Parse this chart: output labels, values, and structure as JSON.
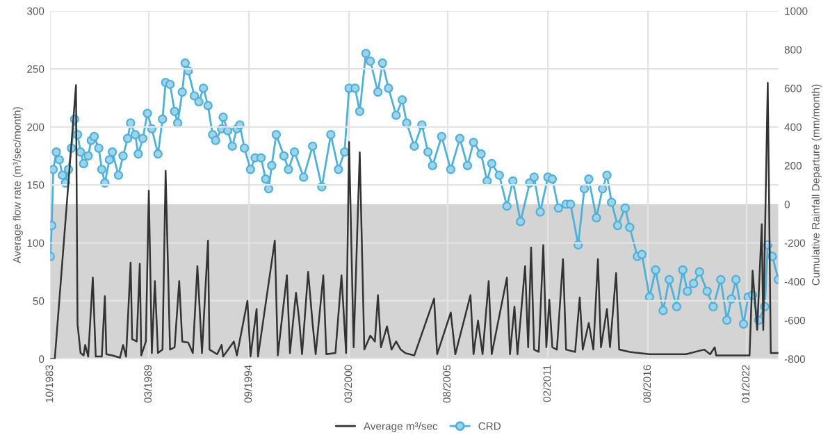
{
  "chart_data": {
    "type": "line",
    "ylabel": "Average flow rate (m³/sec/month)",
    "y2label": "Cumulative Rainfall Departure (mm/month)",
    "xlim": [
      "1983-10",
      "2023-10"
    ],
    "xticks": [
      {
        "value": "1983-10",
        "label": "10/1983"
      },
      {
        "value": "1989-03",
        "label": "03/1989"
      },
      {
        "value": "1994-09",
        "label": "09/1994"
      },
      {
        "value": "2000-03",
        "label": "03/2000"
      },
      {
        "value": "2005-08",
        "label": "08/2005"
      },
      {
        "value": "2011-02",
        "label": "02/2011"
      },
      {
        "value": "2016-08",
        "label": "08/2016"
      },
      {
        "value": "2022-01",
        "label": "01/2022"
      }
    ],
    "ylim": [
      0,
      300
    ],
    "yticks": [
      0,
      50,
      100,
      150,
      200,
      250,
      300
    ],
    "y2lim": [
      -800,
      1000
    ],
    "y2ticks": [
      -800,
      -600,
      -400,
      -200,
      0,
      200,
      400,
      600,
      800,
      1000
    ],
    "grid": true,
    "legend": "bottom",
    "bands": [
      {
        "axis": "y2",
        "from": -800,
        "to": 0,
        "color": "#d4d4d4"
      }
    ],
    "series": [
      {
        "name": "Average m³/sec",
        "color": "#333333",
        "marker": "none",
        "axis": "y",
        "x": [
          "1983-10",
          "1984-01",
          "1985-03",
          "1985-04",
          "1985-06",
          "1985-08",
          "1985-09",
          "1985-11",
          "1986-02",
          "1986-04",
          "1986-08",
          "1986-10",
          "1986-11",
          "1987-03",
          "1987-08",
          "1987-10",
          "1987-12",
          "1988-03",
          "1988-04",
          "1988-07",
          "1988-09",
          "1988-10",
          "1989-01",
          "1989-03",
          "1989-05",
          "1989-07",
          "1989-09",
          "1989-12",
          "1990-02",
          "1990-05",
          "1990-08",
          "1990-11",
          "1991-01",
          "1991-05",
          "1991-08",
          "1991-11",
          "1992-02",
          "1992-06",
          "1992-07",
          "1992-12",
          "1993-03",
          "1993-04",
          "1993-11",
          "1994-01",
          "1994-08",
          "1994-10",
          "1995-02",
          "1995-03",
          "1996-02",
          "1996-04",
          "1996-10",
          "1996-12",
          "1997-04",
          "1997-06",
          "1997-08",
          "1997-12",
          "1998-03",
          "1998-05",
          "1998-10",
          "1998-12",
          "1999-06",
          "1999-10",
          "2000-01",
          "2000-03",
          "2000-06",
          "2000-10",
          "2001-01",
          "2001-05",
          "2001-08",
          "2001-10",
          "2001-12",
          "2002-04",
          "2002-07",
          "2002-10",
          "2003-01",
          "2003-04",
          "2003-10",
          "2004-11",
          "2005-01",
          "2005-10",
          "2006-01",
          "2006-11",
          "2007-01",
          "2007-04",
          "2007-07",
          "2007-11",
          "2008-01",
          "2008-11",
          "2009-01",
          "2009-04",
          "2009-06",
          "2009-11",
          "2010-01",
          "2010-03",
          "2010-05",
          "2010-08",
          "2010-11",
          "2011-01",
          "2011-03",
          "2011-05",
          "2011-08",
          "2011-12",
          "2012-02",
          "2012-08",
          "2012-11",
          "2013-01",
          "2013-05",
          "2013-08",
          "2013-11",
          "2014-01",
          "2014-05",
          "2014-07",
          "2014-11",
          "2015-01",
          "2015-08",
          "2016-09",
          "2018-09",
          "2019-09",
          "2020-01",
          "2020-04",
          "2020-05",
          "2022-03",
          "2022-05",
          "2022-08",
          "2022-11",
          "2022-12",
          "2023-03",
          "2023-05",
          "2023-10"
        ],
        "values": [
          0,
          0,
          236,
          30,
          5,
          3,
          12,
          2,
          70,
          2,
          2,
          54,
          4,
          3,
          1,
          12,
          2,
          83,
          17,
          15,
          82,
          3,
          15,
          145,
          5,
          67,
          5,
          8,
          162,
          8,
          10,
          67,
          15,
          14,
          5,
          80,
          5,
          102,
          8,
          4,
          12,
          2,
          15,
          3,
          50,
          2,
          43,
          2,
          102,
          3,
          72,
          5,
          57,
          35,
          4,
          75,
          30,
          4,
          72,
          4,
          5,
          72,
          5,
          187,
          10,
          178,
          8,
          20,
          15,
          55,
          10,
          28,
          8,
          15,
          8,
          5,
          3,
          52,
          4,
          40,
          4,
          55,
          4,
          33,
          4,
          67,
          4,
          70,
          4,
          45,
          4,
          80,
          10,
          96,
          8,
          6,
          98,
          10,
          51,
          10,
          8,
          86,
          8,
          6,
          53,
          8,
          31,
          8,
          86,
          10,
          43,
          10,
          74,
          8,
          6,
          4,
          4,
          8,
          4,
          10,
          3,
          3,
          76,
          25,
          116,
          25,
          238,
          5,
          5
        ]
      },
      {
        "name": "CRD",
        "color": "#4fb0d8",
        "marker": "circle",
        "axis": "y2",
        "x": [
          "1983-10",
          "1983-11",
          "1983-12",
          "1984-02",
          "1984-04",
          "1984-06",
          "1984-08",
          "1984-10",
          "1984-12",
          "1985-02",
          "1985-04",
          "1985-06",
          "1985-08",
          "1985-11",
          "1986-01",
          "1986-03",
          "1986-06",
          "1986-08",
          "1986-10",
          "1987-01",
          "1987-03",
          "1987-07",
          "1987-10",
          "1988-01",
          "1988-03",
          "1988-06",
          "1988-08",
          "1988-11",
          "1989-02",
          "1989-05",
          "1989-09",
          "1989-12",
          "1990-02",
          "1990-05",
          "1990-08",
          "1990-10",
          "1991-01",
          "1991-03",
          "1991-05",
          "1991-09",
          "1991-12",
          "1992-03",
          "1992-06",
          "1992-09",
          "1992-11",
          "1993-03",
          "1993-04",
          "1993-07",
          "1993-10",
          "1994-01",
          "1994-03",
          "1994-06",
          "1994-10",
          "1995-01",
          "1995-05",
          "1995-08",
          "1995-10",
          "1995-12",
          "1996-03",
          "1996-08",
          "1996-11",
          "1997-03",
          "1997-09",
          "1998-03",
          "1998-09",
          "1999-03",
          "1999-08",
          "1999-12",
          "2000-03",
          "2000-07",
          "2000-10",
          "2001-02",
          "2001-05",
          "2001-10",
          "2002-01",
          "2002-05",
          "2002-10",
          "2003-02",
          "2003-05",
          "2003-10",
          "2004-03",
          "2004-07",
          "2004-10",
          "2005-04",
          "2005-10",
          "2006-04",
          "2006-09",
          "2007-01",
          "2007-06",
          "2007-10",
          "2008-01",
          "2008-06",
          "2008-11",
          "2009-03",
          "2009-08",
          "2010-02",
          "2010-05",
          "2010-09",
          "2011-02",
          "2011-05",
          "2011-09",
          "2012-02",
          "2012-05",
          "2012-10",
          "2013-02",
          "2013-05",
          "2013-10",
          "2014-02",
          "2014-05",
          "2014-08",
          "2014-12",
          "2015-05",
          "2015-08",
          "2016-01",
          "2016-04",
          "2016-09",
          "2017-01",
          "2017-06",
          "2017-10",
          "2018-03",
          "2018-07",
          "2018-10",
          "2019-02",
          "2019-06",
          "2019-11",
          "2020-03",
          "2020-08",
          "2020-12",
          "2021-03",
          "2021-06",
          "2021-11",
          "2022-02",
          "2022-05",
          "2022-09",
          "2023-01",
          "2023-03",
          "2023-06",
          "2023-10"
        ],
        "values": [
          -270,
          -110,
          180,
          270,
          230,
          150,
          110,
          180,
          290,
          440,
          360,
          270,
          210,
          250,
          330,
          350,
          290,
          180,
          110,
          230,
          270,
          150,
          250,
          340,
          420,
          360,
          260,
          340,
          470,
          390,
          260,
          440,
          630,
          620,
          480,
          420,
          580,
          730,
          690,
          560,
          530,
          600,
          510,
          360,
          330,
          390,
          450,
          380,
          300,
          390,
          410,
          290,
          180,
          240,
          240,
          130,
          80,
          200,
          360,
          250,
          180,
          270,
          140,
          300,
          90,
          360,
          180,
          270,
          600,
          600,
          480,
          780,
          740,
          580,
          730,
          600,
          460,
          540,
          420,
          300,
          410,
          270,
          200,
          350,
          180,
          340,
          200,
          320,
          260,
          120,
          210,
          150,
          -10,
          120,
          -90,
          110,
          140,
          -40,
          140,
          130,
          -20,
          0,
          0,
          -210,
          80,
          130,
          -70,
          80,
          150,
          10,
          -110,
          -20,
          -120,
          -270,
          -260,
          -480,
          -340,
          -550,
          -390,
          -530,
          -340,
          -450,
          -410,
          -350,
          -450,
          -530,
          -390,
          -600,
          -490,
          -390,
          -620,
          -480,
          -470,
          -600,
          -530,
          -210,
          -270,
          -390
        ]
      }
    ]
  }
}
